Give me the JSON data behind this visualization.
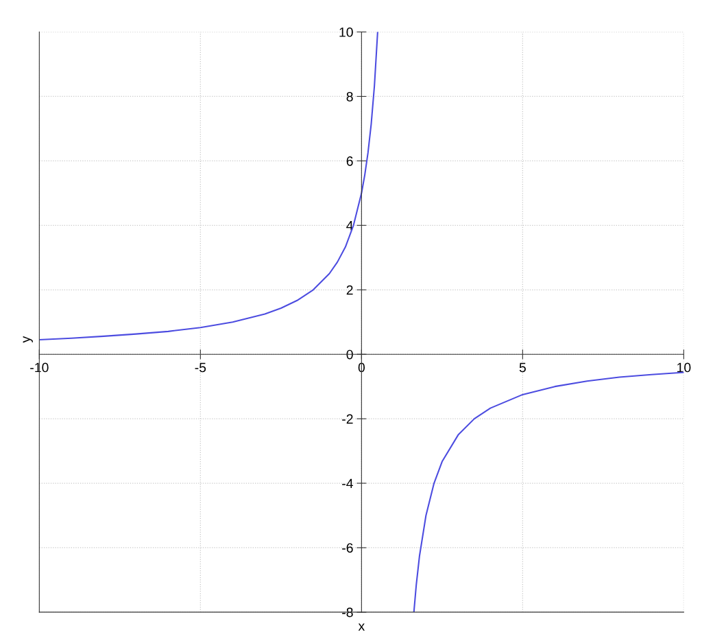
{
  "chart_data": {
    "type": "line",
    "xlabel": "x",
    "ylabel": "y",
    "x": [
      -10,
      -9,
      -8,
      -7,
      -6,
      -5,
      -4,
      -3,
      -2.5,
      -2,
      -1.5,
      -1,
      -0.75,
      -0.5,
      -0.25,
      0,
      0.1,
      0.2,
      0.3,
      0.4,
      0.5,
      1,
      1.625,
      1.7,
      1.8,
      2,
      2.25,
      2.5,
      3,
      3.5,
      4,
      5,
      6,
      7,
      8,
      9,
      10
    ],
    "series": [
      {
        "color": "#4c4ce0",
        "values": [
          0.45,
          0.5,
          0.56,
          0.63,
          0.71,
          0.83,
          1.0,
          1.25,
          1.43,
          1.67,
          2.0,
          2.5,
          2.86,
          3.33,
          4.0,
          5.0,
          5.56,
          6.25,
          7.14,
          8.33,
          10,
          null,
          -8,
          -7.14,
          -6.25,
          -5,
          -4,
          -3.33,
          -2.5,
          -2,
          -1.67,
          -1.25,
          -1,
          -0.83,
          -0.71,
          -0.63,
          -0.56
        ]
      }
    ],
    "xlim": [
      -10,
      10
    ],
    "ylim": [
      -8,
      10
    ],
    "xticks": [
      -10,
      -5,
      0,
      5,
      10
    ],
    "yticks": [
      -8,
      -6,
      -4,
      -2,
      0,
      2,
      4,
      6,
      8,
      10
    ],
    "grid": true,
    "marker": "none",
    "line_style": "solid"
  }
}
